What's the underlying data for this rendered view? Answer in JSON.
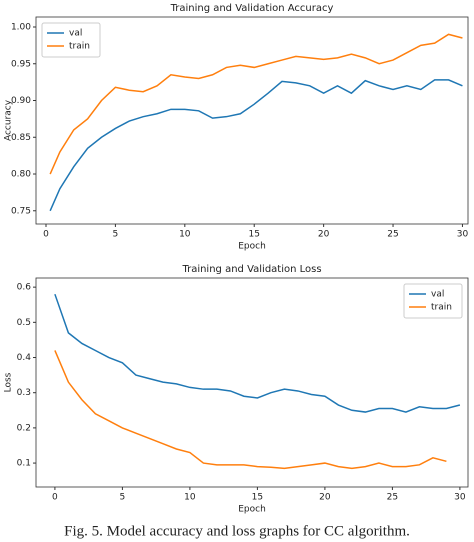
{
  "chart_data": [
    {
      "type": "line",
      "title": "Training and Validation Accuracy",
      "x_label": "Epoch",
      "y_label": "Accuracy",
      "x": [
        0.3,
        1,
        2,
        3,
        4,
        5,
        6,
        7,
        8,
        9,
        10,
        11,
        12,
        13,
        14,
        15,
        16,
        17,
        18,
        19,
        20,
        21,
        22,
        23,
        24,
        25,
        26,
        27,
        28,
        29,
        30
      ],
      "series": [
        {
          "name": "val",
          "color": "#1f77b4",
          "values": [
            0.75,
            0.78,
            0.81,
            0.835,
            0.85,
            0.862,
            0.872,
            0.878,
            0.882,
            0.888,
            0.888,
            0.886,
            0.876,
            0.878,
            0.882,
            0.895,
            0.91,
            0.926,
            0.924,
            0.92,
            0.91,
            0.92,
            0.91,
            0.927,
            0.92,
            0.915,
            0.92,
            0.915,
            0.928,
            0.928,
            0.92
          ]
        },
        {
          "name": "train",
          "color": "#ff7f0e",
          "values": [
            0.8,
            0.83,
            0.86,
            0.875,
            0.9,
            0.918,
            0.914,
            0.912,
            0.92,
            0.935,
            0.932,
            0.93,
            0.935,
            0.945,
            0.948,
            0.945,
            0.95,
            0.955,
            0.96,
            0.958,
            0.956,
            0.958,
            0.963,
            0.958,
            0.95,
            0.955,
            0.965,
            0.975,
            0.978,
            0.99,
            0.985
          ]
        }
      ],
      "xlim": [
        -0.72,
        30.4
      ],
      "xticks": [
        0,
        5,
        10,
        15,
        20,
        25,
        30
      ],
      "ylim": [
        0.732,
        1.0136
      ],
      "yticks": [
        0.75,
        {
          "value": 0.8,
          "label": "0.80"
        },
        0.85,
        {
          "value": 0.9,
          "label": "0.90"
        },
        0.95,
        {
          "value": 1,
          "label": "1.00"
        }
      ],
      "legend": "upper left"
    },
    {
      "type": "line",
      "title": "Training and Validation Loss",
      "x_label": "Epoch",
      "y_label": "Loss",
      "x": [
        0,
        1,
        2,
        3,
        4,
        5,
        6,
        7,
        8,
        9,
        10,
        11,
        12,
        13,
        14,
        15,
        16,
        17,
        18,
        19,
        20,
        21,
        22,
        23,
        24,
        25,
        26,
        27,
        28,
        29,
        30
      ],
      "series": [
        {
          "name": "val",
          "color": "#1f77b4",
          "values": [
            0.58,
            0.47,
            0.44,
            0.42,
            0.4,
            0.385,
            0.35,
            0.34,
            0.33,
            0.325,
            0.315,
            0.31,
            0.31,
            0.305,
            0.29,
            0.285,
            0.3,
            0.31,
            0.305,
            0.295,
            0.29,
            0.265,
            0.25,
            0.245,
            0.255,
            0.255,
            0.245,
            0.26,
            0.255,
            0.255,
            0.265
          ]
        },
        {
          "name": "train",
          "color": "#ff7f0e",
          "values": [
            0.42,
            0.33,
            0.28,
            0.24,
            0.22,
            0.2,
            0.185,
            0.17,
            0.155,
            0.14,
            0.13,
            0.1,
            0.095,
            0.095,
            0.095,
            0.09,
            0.088,
            0.085,
            0.09,
            0.095,
            0.1,
            0.09,
            0.085,
            0.09,
            0.1,
            0.09,
            0.09,
            0.095,
            0.115,
            0.105,
            null
          ]
        }
      ],
      "xlim": [
        -1.4,
        30.6
      ],
      "xticks": [
        0,
        5,
        10,
        15,
        20,
        25,
        30
      ],
      "ylim": [
        0.032,
        0.626
      ],
      "yticks": [
        0.1,
        0.2,
        0.3,
        0.4,
        0.5,
        0.6
      ],
      "legend": "upper right"
    }
  ],
  "caption": "Fig. 5. Model accuracy and loss graphs for CC algorithm."
}
